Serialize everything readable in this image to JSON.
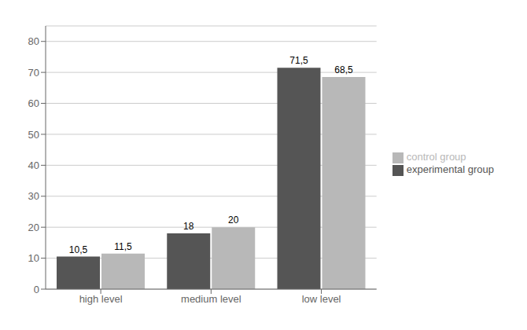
{
  "chart_data": {
    "type": "bar",
    "categories": [
      "high level",
      "medium level",
      "low level"
    ],
    "series": [
      {
        "name": "experimental group",
        "color": "#555555",
        "values": [
          10.5,
          18,
          71.5
        ],
        "value_labels": [
          "10,5",
          "18",
          "71,5"
        ]
      },
      {
        "name": "control group",
        "color": "#b8b8b8",
        "values": [
          11.5,
          20,
          68.5
        ],
        "value_labels": [
          "11,5",
          "20",
          "68,5"
        ]
      }
    ],
    "ylim": [
      0,
      85
    ],
    "yticks": [
      0,
      10,
      20,
      30,
      40,
      50,
      60,
      70,
      80
    ],
    "grid": true,
    "legend": "right",
    "data_labels": true
  }
}
